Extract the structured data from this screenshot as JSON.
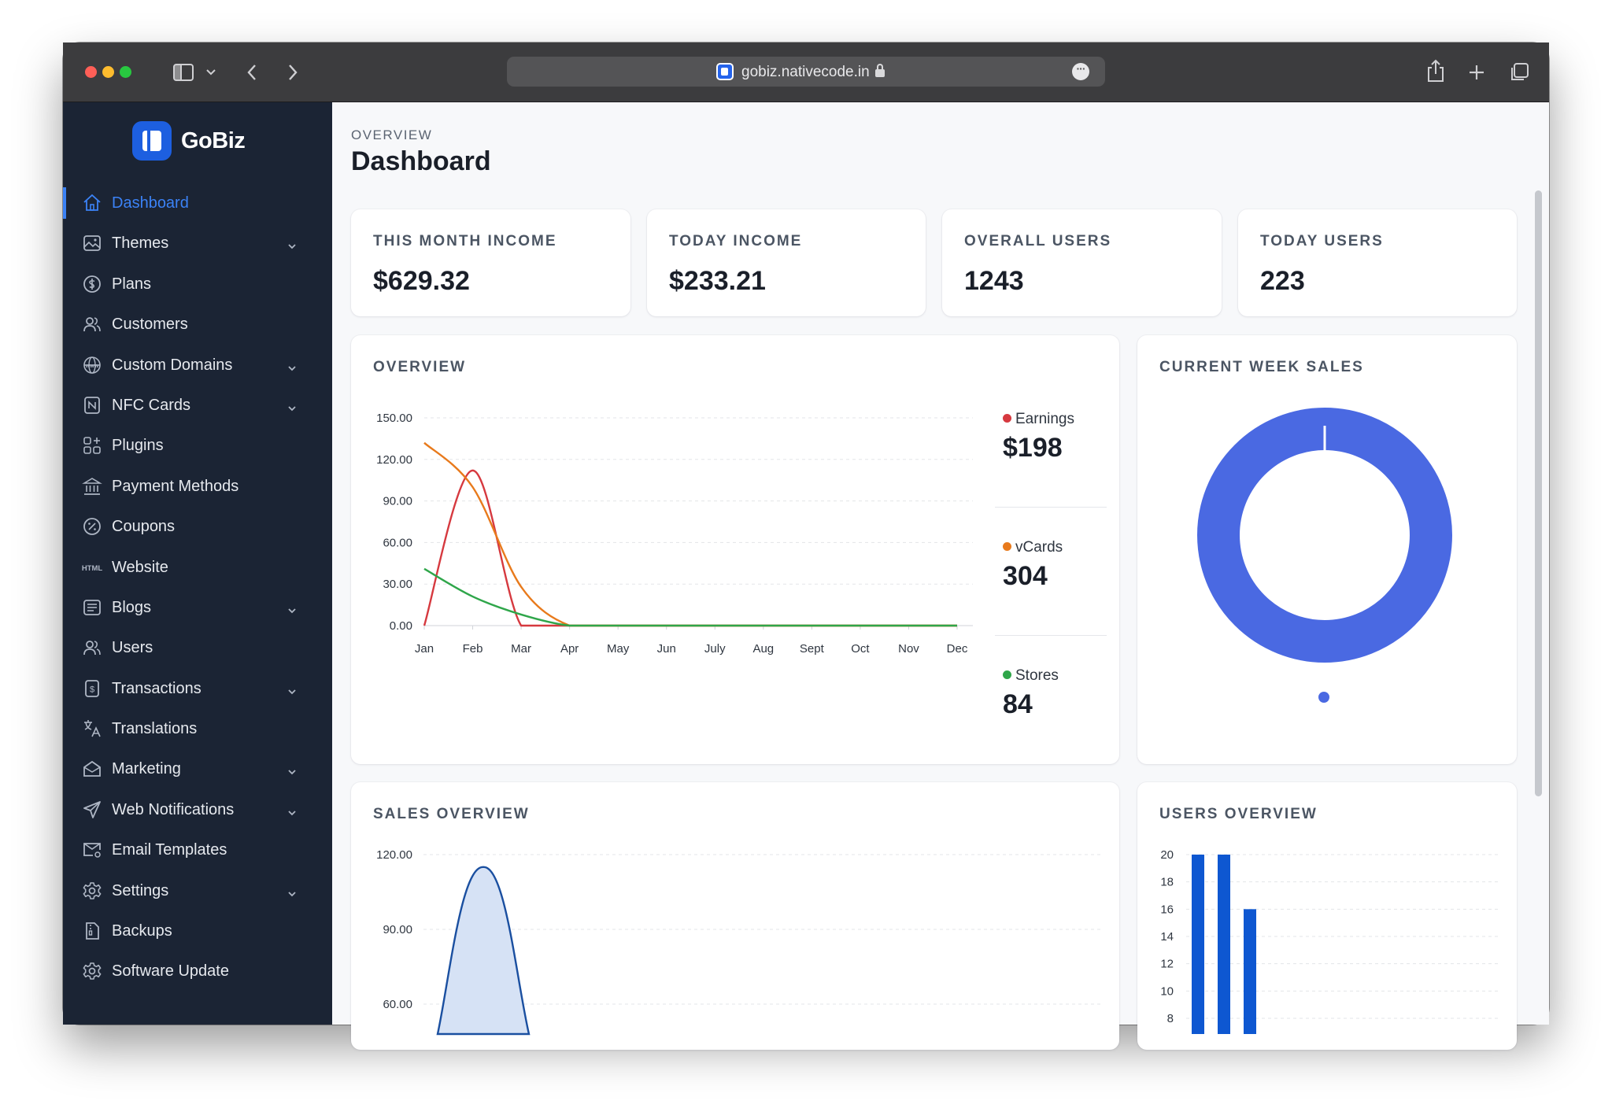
{
  "browser": {
    "url": "gobiz.nativecode.in",
    "traffic_lights": [
      "#ff5f57",
      "#febc2e",
      "#28c840"
    ],
    "icons": {
      "sidebar_toggle": "sidebar-icon",
      "back": "chevron-left-icon",
      "forward": "chevron-right-icon",
      "share": "share-icon",
      "new_tab": "plus-icon",
      "tabs": "tabs-overview-icon"
    }
  },
  "sidebar": {
    "brand": "GoBiz",
    "items": [
      {
        "label": "Dashboard",
        "icon": "home-icon",
        "active": true,
        "has_submenu": false
      },
      {
        "label": "Themes",
        "icon": "image-icon",
        "has_submenu": true
      },
      {
        "label": "Plans",
        "icon": "dollar-circle-icon",
        "has_submenu": false
      },
      {
        "label": "Customers",
        "icon": "users-icon",
        "has_submenu": false
      },
      {
        "label": "Custom Domains",
        "icon": "globe-www-icon",
        "has_submenu": true
      },
      {
        "label": "NFC Cards",
        "icon": "nfc-icon",
        "has_submenu": true
      },
      {
        "label": "Plugins",
        "icon": "apps-grid-icon",
        "has_submenu": false
      },
      {
        "label": "Payment Methods",
        "icon": "bank-icon",
        "has_submenu": false
      },
      {
        "label": "Coupons",
        "icon": "discount-icon",
        "has_submenu": false
      },
      {
        "label": "Website",
        "icon": "html-icon",
        "icon_text": "HTML",
        "has_submenu": false
      },
      {
        "label": "Blogs",
        "icon": "article-icon",
        "has_submenu": true
      },
      {
        "label": "Users",
        "icon": "users-icon",
        "has_submenu": false
      },
      {
        "label": "Transactions",
        "icon": "receipt-icon",
        "has_submenu": true
      },
      {
        "label": "Translations",
        "icon": "language-icon",
        "has_submenu": false
      },
      {
        "label": "Marketing",
        "icon": "mail-opened-icon",
        "has_submenu": true
      },
      {
        "label": "Web Notifications",
        "icon": "send-icon",
        "has_submenu": true
      },
      {
        "label": "Email Templates",
        "icon": "mail-cog-icon",
        "has_submenu": false
      },
      {
        "label": "Settings",
        "icon": "gear-icon",
        "has_submenu": true
      },
      {
        "label": "Backups",
        "icon": "file-zip-icon",
        "has_submenu": false
      },
      {
        "label": "Software Update",
        "icon": "settings-update-icon",
        "has_submenu": false
      }
    ]
  },
  "header": {
    "pretitle": "OVERVIEW",
    "title": "Dashboard"
  },
  "stats": [
    {
      "title": "THIS MONTH INCOME",
      "value": "$629.32"
    },
    {
      "title": "TODAY INCOME",
      "value": "$233.21"
    },
    {
      "title": "OVERALL USERS",
      "value": "1243"
    },
    {
      "title": "TODAY USERS",
      "value": "223"
    }
  ],
  "colors": {
    "accent": "#3b82f6",
    "sidebar_bg": "#1b2434",
    "earnings": "#d6393f",
    "vcards": "#e87a1c",
    "stores": "#2fa64a",
    "donut": "#4a69e2",
    "sales_area": "#1a4fa0",
    "users_bar": "#0e57d1"
  },
  "chart_data": [
    {
      "type": "line",
      "title": "OVERVIEW",
      "categories": [
        "Jan",
        "Feb",
        "Mar",
        "Apr",
        "May",
        "Jun",
        "July",
        "Aug",
        "Sept",
        "Oct",
        "Nov",
        "Dec"
      ],
      "y_ticks": [
        "0.00",
        "30.00",
        "60.00",
        "90.00",
        "120.00",
        "150.00"
      ],
      "ylim": [
        0,
        150
      ],
      "grid": true,
      "legend_position": "right",
      "series": [
        {
          "name": "Earnings",
          "total": "$198",
          "color": "#d6393f",
          "values": [
            0,
            112,
            0,
            0,
            0,
            0,
            0,
            0,
            0,
            0,
            0,
            0
          ]
        },
        {
          "name": "vCards",
          "total": "304",
          "color": "#e87a1c",
          "values": [
            132,
            100,
            28,
            0,
            0,
            0,
            0,
            0,
            0,
            0,
            0,
            0
          ]
        },
        {
          "name": "Stores",
          "total": "84",
          "color": "#2fa64a",
          "values": [
            41,
            21,
            8,
            0,
            0,
            0,
            0,
            0,
            0,
            0,
            0,
            0
          ]
        }
      ]
    },
    {
      "type": "pie",
      "title": "CURRENT WEEK SALES",
      "donut": true,
      "values": [
        100
      ],
      "color": "#4a69e2"
    },
    {
      "type": "area",
      "title": "SALES OVERVIEW",
      "y_ticks": [
        "60.00",
        "90.00",
        "120.00"
      ],
      "grid": true,
      "series": [
        {
          "color": "#1a4fa0",
          "peak": 115
        }
      ]
    },
    {
      "type": "bar",
      "title": "USERS OVERVIEW",
      "y_ticks": [
        "8",
        "10",
        "12",
        "14",
        "16",
        "18",
        "20"
      ],
      "grid": true,
      "values": [
        20,
        20,
        16
      ],
      "color": "#0e57d1"
    }
  ]
}
